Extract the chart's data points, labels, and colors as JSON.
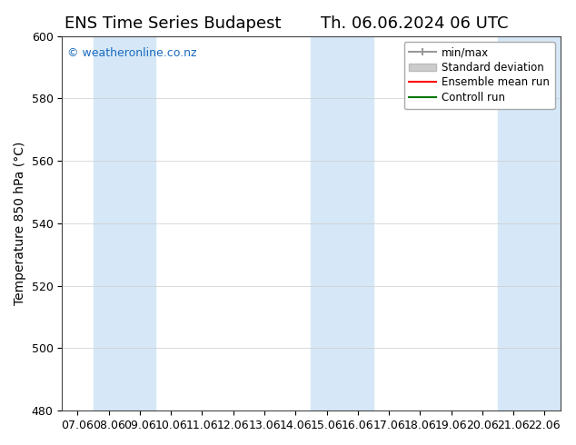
{
  "title_left": "ENS Time Series Budapest",
  "title_right": "Th. 06.06.2024 06 UTC",
  "ylabel": "Temperature 850 hPa (°C)",
  "ylim": [
    480,
    600
  ],
  "yticks": [
    480,
    500,
    520,
    540,
    560,
    580,
    600
  ],
  "x_labels": [
    "07.06",
    "08.06",
    "09.06",
    "10.06",
    "11.06",
    "12.06",
    "13.06",
    "14.06",
    "15.06",
    "16.06",
    "17.06",
    "18.06",
    "19.06",
    "20.06",
    "21.06",
    "22.06"
  ],
  "x_positions": [
    0,
    1,
    2,
    3,
    4,
    5,
    6,
    7,
    8,
    9,
    10,
    11,
    12,
    13,
    14,
    15
  ],
  "shaded_regions": [
    {
      "xmin": 1,
      "xmax": 3,
      "color": "#d6e8f7"
    },
    {
      "xmin": 8,
      "xmax": 10,
      "color": "#d6e8f7"
    },
    {
      "xmin": 14,
      "xmax": 16,
      "color": "#d6e8f7"
    }
  ],
  "watermark": "© weatheronline.co.nz",
  "watermark_color": "#1a6bbf",
  "background_color": "#ffffff",
  "plot_bg_color": "#ffffff",
  "legend_items": [
    {
      "label": "min/max",
      "color": "#aaaaaa",
      "lw": 1.5
    },
    {
      "label": "Standard deviation",
      "color": "#cccccc",
      "lw": 8
    },
    {
      "label": "Ensemble mean run",
      "color": "#ff0000",
      "lw": 1.5
    },
    {
      "label": "Controll run",
      "color": "#007700",
      "lw": 1.5
    }
  ],
  "title_fontsize": 13,
  "axis_label_fontsize": 10,
  "tick_fontsize": 9
}
